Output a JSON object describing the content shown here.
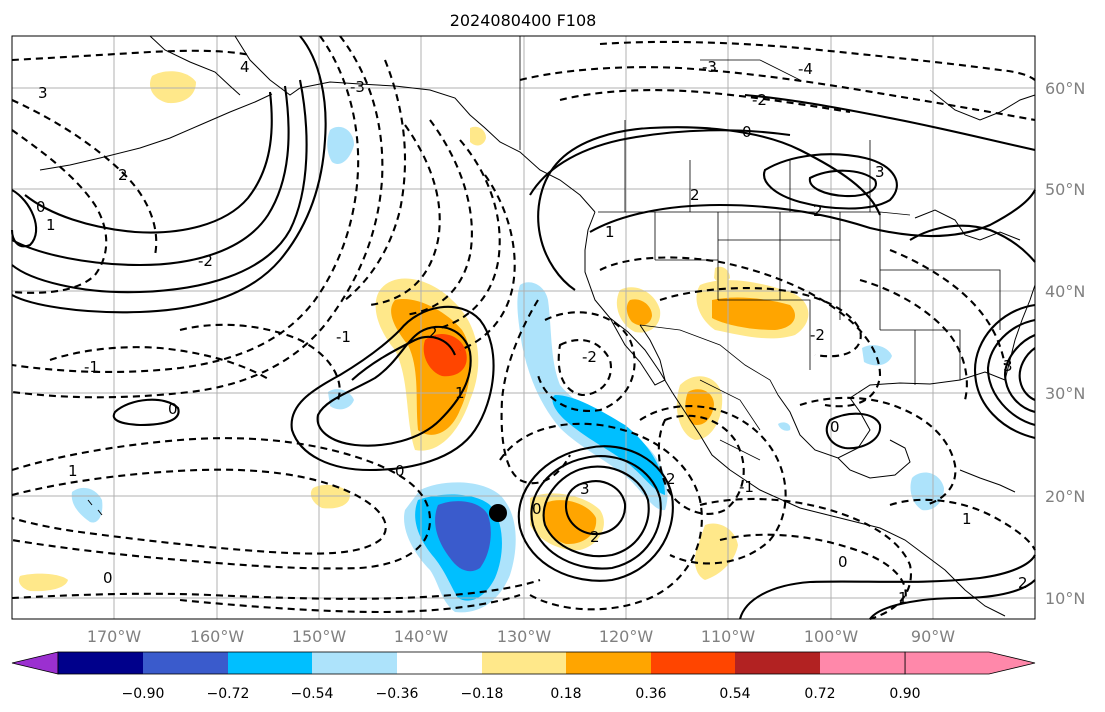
{
  "map": {
    "title": "2024080400 F108",
    "lat_labels": [
      "60°N",
      "50°N",
      "40°N",
      "30°N",
      "20°N",
      "10°N"
    ],
    "lon_labels": [
      "170°W",
      "160°W",
      "150°W",
      "140°W",
      "130°W",
      "120°W",
      "110°W",
      "100°W",
      "90°W"
    ],
    "contour_labels": [
      "4",
      "3",
      "2",
      "1",
      "0",
      "-1",
      "-2",
      "-3",
      "3",
      "2",
      "1",
      "0",
      "-1",
      "-2",
      "2",
      "3",
      "0",
      "-1",
      "1",
      "0",
      "2",
      "1",
      "-3",
      "-2",
      "0",
      "3",
      "2",
      "1",
      "0",
      "1",
      "-4",
      "-2",
      "0",
      "2",
      "0",
      "2"
    ],
    "marker": "storm-center"
  },
  "colorbar": {
    "ticks": [
      "−0.90",
      "−0.72",
      "−0.54",
      "−0.36",
      "−0.18",
      "0.18",
      "0.36",
      "0.54",
      "0.72",
      "0.90"
    ],
    "colors": [
      "#9b30d0",
      "#00008b",
      "#3a5bcc",
      "#00bfff",
      "#ade3fb",
      "#ffffff",
      "#ffe88a",
      "#ffa500",
      "#ff4500",
      "#b22222",
      "#ff88aa"
    ]
  }
}
